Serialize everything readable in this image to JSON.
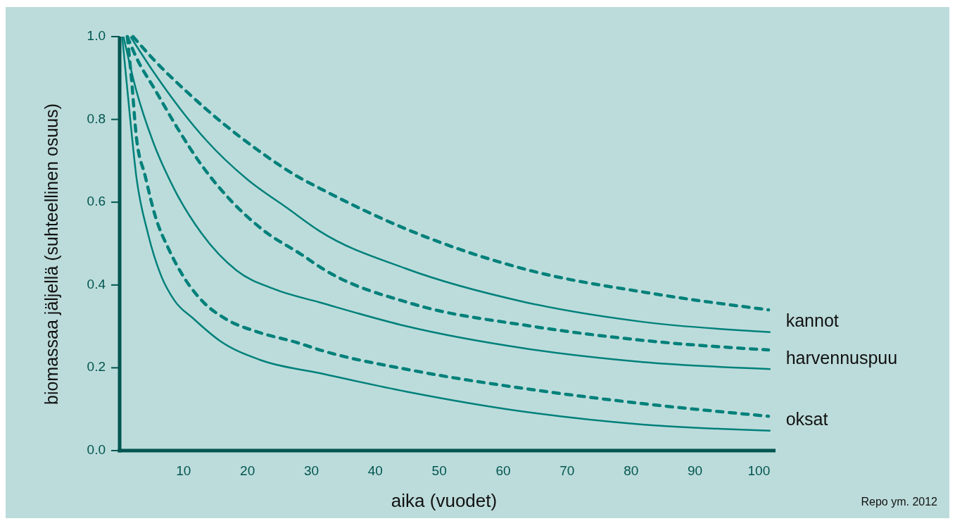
{
  "chart_data": {
    "type": "line",
    "xlabel": "aika (vuodet)",
    "ylabel": "biomassaa jäljellä (suhteellinen osuus)",
    "xlim": [
      0,
      102.6
    ],
    "ylim": [
      0,
      1.0
    ],
    "xticks": [
      10,
      20,
      30,
      40,
      50,
      60,
      70,
      80,
      90,
      100
    ],
    "yticks": [
      {
        "value": 0,
        "label": "0.0"
      },
      {
        "value": 0.2,
        "label": "0.2"
      },
      {
        "value": 0.4,
        "label": "0.4"
      },
      {
        "value": 0.6,
        "label": "0.6"
      },
      {
        "value": 0.8,
        "label": "0.8"
      },
      {
        "value": 1.0,
        "label": "1.0"
      }
    ],
    "grid": false,
    "marker": "none",
    "annotations": [
      "Repo ym. 2012"
    ],
    "series": [
      {
        "color": "#00807a",
        "line_style": "dashed",
        "x": [
          2.1,
          5.6,
          10.7,
          16.2,
          21.7,
          27.5,
          31.5,
          44.7,
          64.2,
          82.7,
          101.5
        ],
        "values": [
          1.0,
          0.94,
          0.864,
          0.79,
          0.725,
          0.665,
          0.632,
          0.536,
          0.435,
          0.381,
          0.34
        ]
      },
      {
        "name": "kannot",
        "color": "#00807a",
        "line_style": "solid",
        "x": [
          1.7,
          5.2,
          9.5,
          13.7,
          19.9,
          26.3,
          31.3,
          44.7,
          63.3,
          81.8,
          101.8
        ],
        "values": [
          1.0,
          0.917,
          0.825,
          0.747,
          0.656,
          0.585,
          0.53,
          0.44,
          0.359,
          0.311,
          0.286
        ]
      },
      {
        "color": "#00807a",
        "line_style": "dashed",
        "x": [
          1.2,
          2.6,
          5.6,
          9.0,
          12.8,
          17.4,
          22.5,
          28.4,
          32.0,
          45.7,
          64.2,
          82.7,
          101.5
        ],
        "values": [
          1.0,
          0.95,
          0.87,
          0.78,
          0.69,
          0.604,
          0.532,
          0.474,
          0.437,
          0.355,
          0.301,
          0.265,
          0.243
        ]
      },
      {
        "name": "harvennuspuu",
        "color": "#00807a",
        "line_style": "solid",
        "x": [
          0.6,
          2.6,
          5.2,
          8.6,
          12.8,
          18.3,
          24.2,
          31.3,
          44.7,
          63.3,
          81.8,
          101.8
        ],
        "values": [
          1.0,
          0.87,
          0.747,
          0.63,
          0.525,
          0.435,
          0.39,
          0.358,
          0.301,
          0.247,
          0.214,
          0.197
        ]
      },
      {
        "color": "#00807a",
        "line_style": "dashed",
        "x": [
          1.2,
          1.9,
          2.6,
          4.0,
          5.6,
          7.7,
          10.2,
          13.2,
          16.6,
          21.7,
          27.5,
          32.0,
          45.7,
          64.2,
          82.7,
          101.5
        ],
        "values": [
          1.0,
          0.89,
          0.76,
          0.663,
          0.565,
          0.486,
          0.415,
          0.357,
          0.318,
          0.286,
          0.262,
          0.24,
          0.194,
          0.148,
          0.112,
          0.083
        ]
      },
      {
        "name": "oksat",
        "color": "#00807a",
        "line_style": "solid",
        "x": [
          0.4,
          1.5,
          2.6,
          4.4,
          6.5,
          8.6,
          11.6,
          15.7,
          22.0,
          31.3,
          44.7,
          63.3,
          81.8,
          101.8
        ],
        "values": [
          1.0,
          0.825,
          0.663,
          0.526,
          0.422,
          0.362,
          0.318,
          0.265,
          0.219,
          0.187,
          0.143,
          0.094,
          0.063,
          0.048
        ]
      }
    ]
  }
}
